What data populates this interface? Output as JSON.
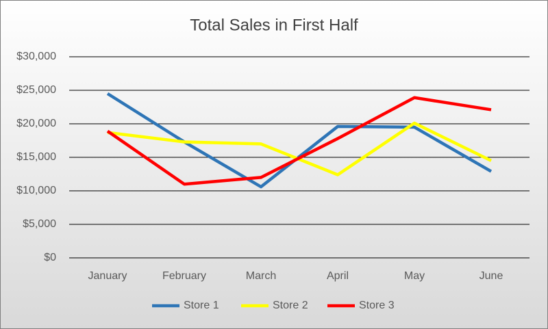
{
  "chart_data": {
    "type": "line",
    "title": "Total Sales in First Half",
    "categories": [
      "January",
      "February",
      "March",
      "April",
      "May",
      "June"
    ],
    "series": [
      {
        "name": "Store 1",
        "color": "#2e75b6",
        "values": [
          24500,
          17300,
          10600,
          19600,
          19500,
          12900
        ]
      },
      {
        "name": "Store 2",
        "color": "#ffff00",
        "values": [
          18700,
          17300,
          17000,
          12400,
          20100,
          14500
        ]
      },
      {
        "name": "Store 3",
        "color": "#ff0000",
        "values": [
          18900,
          11000,
          12000,
          17800,
          23900,
          22100
        ]
      }
    ],
    "ylim": [
      0,
      30000
    ],
    "yticks": [
      {
        "value": 0,
        "label": "$0"
      },
      {
        "value": 5000,
        "label": "$5,000"
      },
      {
        "value": 10000,
        "label": "$10,000"
      },
      {
        "value": 15000,
        "label": "$15,000"
      },
      {
        "value": 20000,
        "label": "$20,000"
      },
      {
        "value": 25000,
        "label": "$25,000"
      },
      {
        "value": 30000,
        "label": "$30,000"
      }
    ],
    "grid": true,
    "legend": "bottom"
  }
}
